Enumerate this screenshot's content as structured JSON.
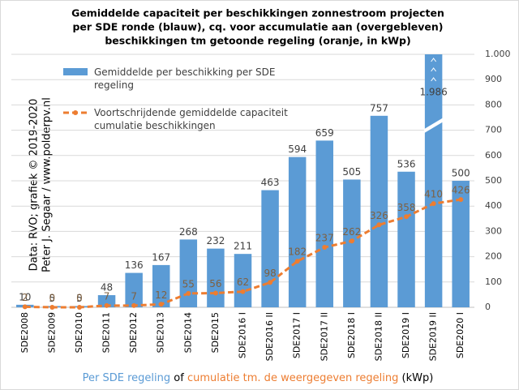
{
  "chart_data": {
    "type": "bar_line",
    "title": [
      "Gemiddelde capaciteit per beschikkingen zonnestroom projecten",
      "per SDE ronde (blauw), cq. voor accumulatie aan (overgebleven)",
      "beschikkingen tm getoonde regeling (oranje, in kWp)"
    ],
    "xlabel_parts": [
      "Per SDE regeling",
      "of",
      "cumulatie tm. de weergegeven regeling",
      "(kWp)"
    ],
    "watermark": [
      "Data: RVO; grafiek © 2019-2020",
      "Peter J. Segaar / www.polderpv.nl"
    ],
    "categories": [
      "SDE2008",
      "SDE2009",
      "SDE2010",
      "SDE2011",
      "SDE2012",
      "SDE2013",
      "SDE2014",
      "SDE2015",
      "SDE2016 I",
      "SDE2016 II",
      "SDE2017 I",
      "SDE2017 II",
      "SDE2018 I",
      "SDE2018 II",
      "SDE2019 I",
      "SDE2019 II",
      "SDE2020 I"
    ],
    "series": [
      {
        "name": "Gemiddelde per beschikking per SDE regeling",
        "type": "bar",
        "color": "#5b9bd5",
        "values": [
          10,
          5,
          5,
          48,
          136,
          167,
          268,
          232,
          211,
          463,
          594,
          659,
          505,
          757,
          536,
          1986,
          500
        ],
        "value_labels": [
          "10",
          "5",
          "5",
          "48",
          "136",
          "167",
          "268",
          "232",
          "211",
          "463",
          "594",
          "659",
          "505",
          "757",
          "536",
          "1.986",
          "500"
        ]
      },
      {
        "name": "Voortschrijdende gemiddelde capaciteit cumulatie beschikkingen",
        "type": "line",
        "color": "#ed7d31",
        "values": [
          2,
          0,
          0,
          7,
          7,
          12,
          55,
          56,
          62,
          98,
          182,
          237,
          262,
          326,
          358,
          410,
          426
        ]
      }
    ],
    "ylim": [
      0,
      1000
    ],
    "yticks": [
      0,
      100,
      200,
      300,
      400,
      500,
      600,
      700,
      800,
      900,
      {
        "value": 1000,
        "label": "1.000"
      }
    ],
    "grid": true,
    "legend": "top-left"
  }
}
